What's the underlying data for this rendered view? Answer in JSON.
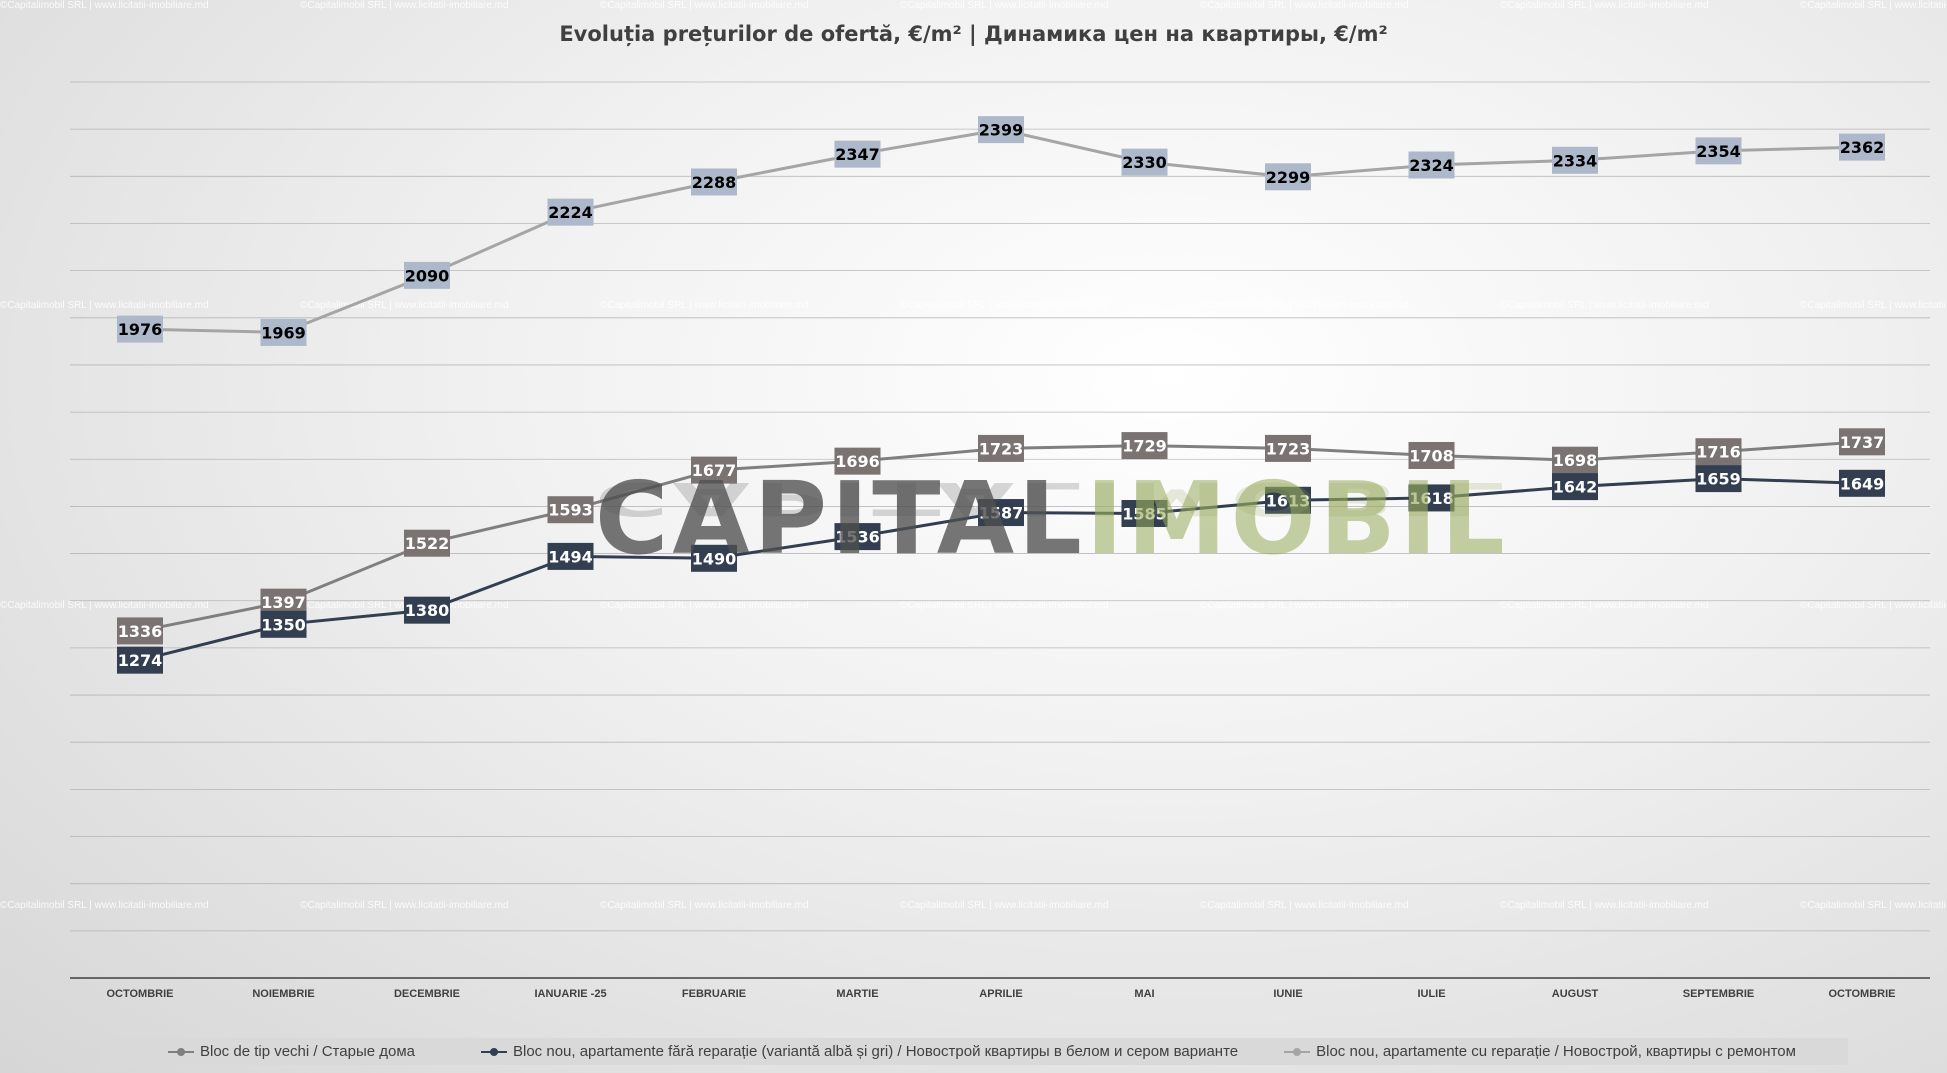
{
  "title": "Evoluția prețurilor de ofertă, €/m²  |  Динамика цен на квартиры, €/m²",
  "brand": {
    "part1": "CAPITAL",
    "part2": "IMOBIL"
  },
  "watermark": "©Capitalimobil SRL | www.licitatii-imobiliare.md",
  "colors": {
    "series_old": "#7f7f7f",
    "series_new_white": "#333f50",
    "series_new_renovated": "#a5a5a5",
    "label_old_bg": "#7b7272",
    "label_new_white_bg": "#333f50",
    "label_new_renovated_bg": "#adb9ca",
    "gridline": "#a6a6a6",
    "axis": "#404040"
  },
  "chart_data": {
    "type": "line",
    "title": "Evoluția prețurilor de ofertă, €/m²  |  Динамика цен на квартиры, €/m²",
    "categories": [
      "OCTOMBRIE",
      "NOIEMBRIE",
      "DECEMBRIE",
      "IANUARIE -25",
      "FEBRUARIE",
      "MARTIE",
      "APRILIE",
      "MAI",
      "IUNIE",
      "IULIE",
      "AUGUST",
      "SEPTEMBRIE",
      "OCTOMBRIE"
    ],
    "ylim": [
      600,
      2500
    ],
    "grid": true,
    "legend": "bottom",
    "series": [
      {
        "name": "Bloc de tip vechi / Старые дома",
        "values": [
          1336,
          1397,
          1522,
          1593,
          1677,
          1696,
          1723,
          1729,
          1723,
          1708,
          1698,
          1716,
          1737
        ]
      },
      {
        "name": "Bloc nou, apartamente fără reparație (variantă albă și gri) / Новострой квартиры в белом и сером варианте",
        "values": [
          1274,
          1350,
          1380,
          1494,
          1490,
          1536,
          1587,
          1585,
          1613,
          1618,
          1642,
          1659,
          1649
        ]
      },
      {
        "name": "Bloc nou, apartamente cu reparație / Новострой, квартиры с ремонтом",
        "values": [
          1976,
          1969,
          2090,
          2224,
          2288,
          2347,
          2399,
          2330,
          2299,
          2324,
          2334,
          2354,
          2362
        ]
      }
    ]
  }
}
